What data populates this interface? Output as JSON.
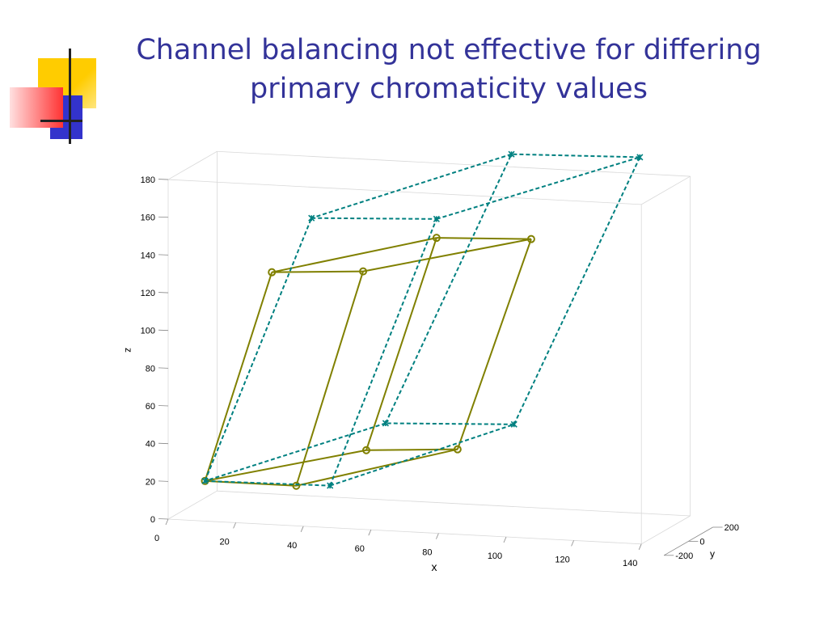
{
  "slide": {
    "title_line1": "Channel balancing not effective for differing",
    "title_line2": "primary chromaticity values"
  },
  "colors": {
    "title": "#333399",
    "series_circle": "#808000",
    "series_star": "#008080",
    "logo_yellow": "#ffcc00",
    "logo_red": "#ff3333",
    "logo_blue": "#3333cc",
    "logo_line": "#222222"
  },
  "chart_data": {
    "type": "line",
    "projection": "3d",
    "xlabel": "x",
    "ylabel": "y",
    "zlabel": "z",
    "x_ticks": [
      "0",
      "20",
      "40",
      "60",
      "80",
      "100",
      "120",
      "140"
    ],
    "y_ticks": [
      "-200",
      "0",
      "200"
    ],
    "z_ticks": [
      "0",
      "20",
      "40",
      "60",
      "80",
      "100",
      "120",
      "140",
      "160",
      "180"
    ],
    "xlim": [
      0,
      140
    ],
    "ylim": [
      -200,
      200
    ],
    "zlim": [
      0,
      180
    ],
    "grid": false,
    "series": [
      {
        "marker": "circle",
        "line_style": "solid",
        "color": "#808000",
        "vertices": [
          [
            8,
            -120,
            18
          ],
          [
            35,
            -120,
            18
          ],
          [
            55,
            -100,
            38
          ],
          [
            82,
            -100,
            41
          ],
          [
            22,
            40,
            124
          ],
          [
            49,
            40,
            127
          ],
          [
            70,
            60,
            146
          ],
          [
            98,
            60,
            148
          ]
        ],
        "edges": [
          [
            0,
            1
          ],
          [
            1,
            3
          ],
          [
            3,
            2
          ],
          [
            2,
            0
          ],
          [
            4,
            5
          ],
          [
            5,
            7
          ],
          [
            7,
            6
          ],
          [
            6,
            4
          ],
          [
            0,
            4
          ],
          [
            1,
            5
          ],
          [
            2,
            6
          ],
          [
            3,
            7
          ]
        ]
      },
      {
        "marker": "star",
        "line_style": "dashed",
        "color": "#008080",
        "vertices": [
          [
            8,
            -120,
            18
          ],
          [
            45,
            -120,
            19
          ],
          [
            60,
            -80,
            52
          ],
          [
            98,
            -80,
            55
          ],
          [
            33,
            60,
            153
          ],
          [
            70,
            60,
            156
          ],
          [
            90,
            120,
            190
          ],
          [
            128,
            120,
            192
          ]
        ],
        "edges": [
          [
            0,
            1
          ],
          [
            1,
            3
          ],
          [
            3,
            2
          ],
          [
            2,
            0
          ],
          [
            4,
            5
          ],
          [
            5,
            7
          ],
          [
            7,
            6
          ],
          [
            6,
            4
          ],
          [
            0,
            4
          ],
          [
            1,
            5
          ],
          [
            2,
            6
          ],
          [
            3,
            7
          ]
        ]
      }
    ]
  }
}
